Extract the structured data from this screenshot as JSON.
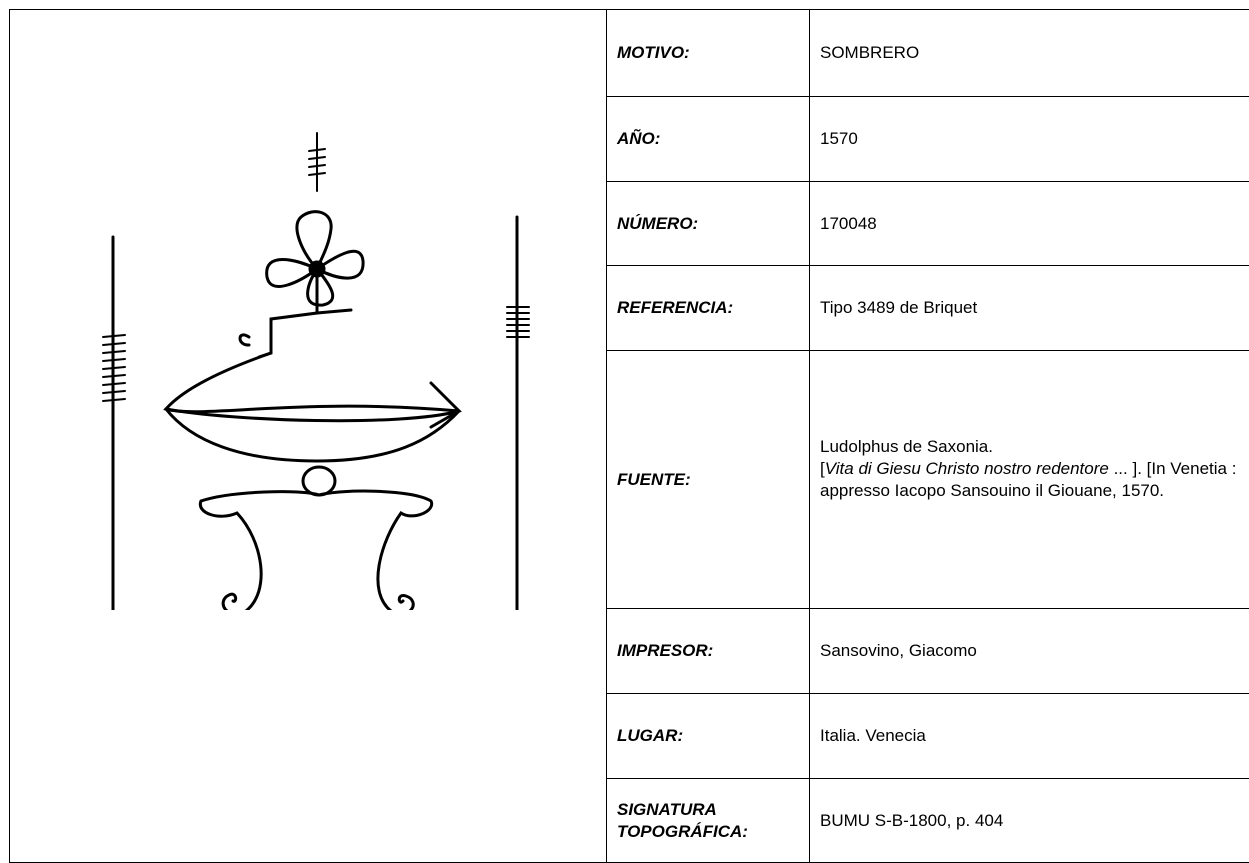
{
  "table": {
    "rows": [
      {
        "label": "MOTIVO:",
        "value": "SOMBRERO"
      },
      {
        "label": "AÑO:",
        "value": "1570"
      },
      {
        "label": "NÚMERO:",
        "value": "170048"
      },
      {
        "label": "REFERENCIA:",
        "value": "Tipo 3489 de Briquet"
      },
      {
        "label": "FUENTE:",
        "value_parts": [
          "Ludolphus de Saxonia.",
          "[",
          "Vita di Giesu Christo nostro redentore",
          " ... ]. [In Venetia : appresso Iacopo Sansouino il Giouane, 1570."
        ]
      },
      {
        "label": "IMPRESOR:",
        "value": "Sansovino, Giacomo"
      },
      {
        "label": "LUGAR:",
        "value": "Italia. Venecia"
      },
      {
        "label": "SIGNATURA TOPOGRÁFICA:",
        "value": "BUMU S-B-1800, p. 404"
      }
    ]
  }
}
